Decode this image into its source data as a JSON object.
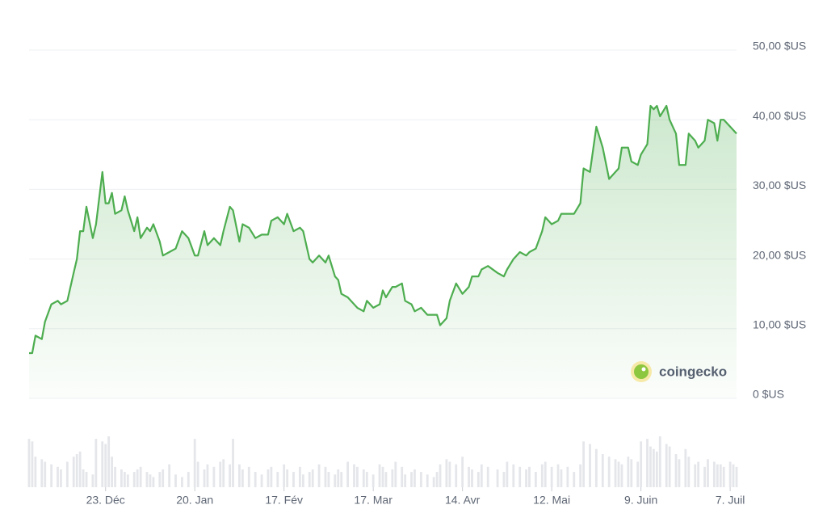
{
  "chart_data": {
    "type": "line",
    "x": [
      0,
      1,
      2,
      4,
      5,
      7,
      9,
      10,
      12,
      14,
      15,
      16,
      17,
      18,
      20,
      21,
      23,
      24,
      25,
      26,
      27,
      29,
      30,
      31,
      33,
      34,
      35,
      37,
      38,
      39,
      41,
      42,
      44,
      46,
      48,
      50,
      52,
      53,
      55,
      56,
      58,
      60,
      61,
      63,
      64,
      66,
      67,
      69,
      71,
      73,
      75,
      76,
      78,
      80,
      81,
      83,
      85,
      86,
      88,
      89,
      91,
      93,
      94,
      96,
      97,
      98,
      100,
      102,
      103,
      105,
      106,
      108,
      110,
      111,
      112,
      114,
      115,
      117,
      118,
      120,
      121,
      123,
      125,
      127,
      128,
      129,
      131,
      132,
      134,
      136,
      138,
      139,
      141,
      142,
      144,
      147,
      149,
      150,
      152,
      154,
      156,
      157,
      159,
      161,
      162,
      164,
      166,
      167,
      169,
      171,
      173,
      174,
      176,
      178,
      180,
      182,
      184,
      185,
      186,
      188,
      189,
      191,
      192,
      194,
      195,
      196,
      197,
      198,
      200,
      201,
      203,
      204,
      206,
      207,
      209,
      210,
      212,
      213,
      215,
      216,
      217,
      218,
      220,
      221,
      222
    ],
    "series": [
      {
        "color": "#4dad4f",
        "values": [
          6.5,
          6.5,
          9,
          8.5,
          11,
          13.5,
          14,
          13.5,
          14,
          18,
          20,
          24,
          24,
          27.5,
          23,
          25,
          32.5,
          28,
          28,
          29.5,
          26.5,
          27,
          29,
          27,
          24,
          26,
          23,
          24.5,
          24,
          25,
          22.5,
          20.5,
          21,
          21.5,
          24,
          23,
          20.5,
          20.5,
          24,
          22,
          23,
          22,
          24,
          27.5,
          27,
          22.5,
          25,
          24.5,
          23,
          23.5,
          23.5,
          25.5,
          26,
          25,
          26.5,
          24,
          24.5,
          24,
          20,
          19.5,
          20.5,
          19.5,
          20.5,
          17.5,
          17,
          15,
          14.5,
          13.5,
          13,
          12.5,
          14,
          13,
          13.5,
          15.5,
          14.5,
          16,
          16,
          16.5,
          14,
          13.5,
          12.5,
          13,
          12,
          12,
          12,
          10.5,
          11.5,
          14,
          16.5,
          15,
          16,
          17.5,
          17.5,
          18.5,
          19,
          18,
          17.5,
          18.5,
          20,
          21,
          20.5,
          21,
          21.5,
          24,
          26,
          25,
          25.5,
          26.5,
          26.5,
          26.5,
          28,
          33,
          32.5,
          39,
          36,
          31.5,
          32.5,
          33,
          36,
          36,
          34,
          33.5,
          35,
          36.5,
          42,
          41.5,
          42,
          40.5,
          42,
          40,
          38,
          33.5,
          33.5,
          38,
          37,
          36,
          37,
          40,
          39.5,
          37,
          40,
          40,
          39,
          38.5,
          38
        ]
      }
    ],
    "volume": {
      "color": "#e4e6ea",
      "ylim": [
        0,
        100
      ],
      "values": [
        95,
        90,
        60,
        55,
        50,
        45,
        40,
        35,
        50,
        60,
        65,
        70,
        35,
        30,
        25,
        95,
        90,
        85,
        100,
        60,
        40,
        35,
        30,
        25,
        30,
        35,
        40,
        30,
        25,
        20,
        30,
        35,
        45,
        25,
        20,
        30,
        95,
        50,
        35,
        45,
        40,
        50,
        55,
        45,
        95,
        45,
        35,
        40,
        30,
        25,
        35,
        40,
        30,
        45,
        35,
        30,
        40,
        25,
        30,
        35,
        45,
        40,
        30,
        25,
        35,
        30,
        50,
        45,
        40,
        35,
        30,
        25,
        45,
        40,
        30,
        35,
        50,
        40,
        25,
        30,
        35,
        30,
        25,
        20,
        30,
        45,
        55,
        50,
        45,
        60,
        40,
        35,
        30,
        45,
        40,
        35,
        30,
        50,
        45,
        40,
        35,
        40,
        30,
        45,
        50,
        40,
        45,
        35,
        40,
        30,
        45,
        90,
        85,
        75,
        65,
        60,
        55,
        50,
        45,
        60,
        55,
        50,
        90,
        95,
        80,
        75,
        70,
        100,
        85,
        80,
        65,
        55,
        75,
        60,
        45,
        50,
        40,
        55,
        50,
        45,
        45,
        40,
        50,
        45,
        40
      ]
    },
    "xlim": [
      0,
      222
    ],
    "xticks": [
      {
        "value": 24,
        "label": "23. Déc"
      },
      {
        "value": 52,
        "label": "20. Jan"
      },
      {
        "value": 80,
        "label": "17. Fév"
      },
      {
        "value": 108,
        "label": "17. Mar"
      },
      {
        "value": 136,
        "label": "14. Avr"
      },
      {
        "value": 164,
        "label": "12. Mai"
      },
      {
        "value": 192,
        "label": "9. Juin"
      },
      {
        "value": 220,
        "label": "7. Juil"
      }
    ],
    "ylim": [
      0,
      50
    ],
    "yticks": [
      {
        "value": 0,
        "label": "0 $US"
      },
      {
        "value": 10,
        "label": "10,00 $US"
      },
      {
        "value": 20,
        "label": "20,00 $US"
      },
      {
        "value": 30,
        "label": "30,00 $US"
      },
      {
        "value": 40,
        "label": "40,00 $US"
      },
      {
        "value": 50,
        "label": "50,00 $US"
      }
    ],
    "grid": true,
    "watermark": "coingecko"
  }
}
